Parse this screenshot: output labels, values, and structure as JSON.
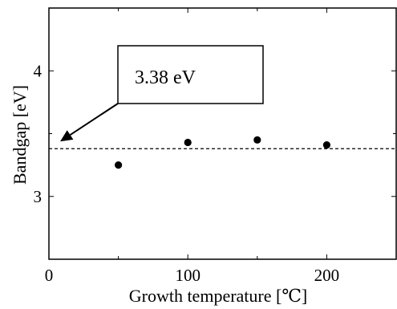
{
  "chart_data": {
    "type": "scatter",
    "title": "",
    "xlabel": "Growth temperature [℃]",
    "ylabel": "Bandgap [eV]",
    "xlim": [
      0,
      250
    ],
    "ylim": [
      2.5,
      4.5
    ],
    "xticks": [
      0,
      100,
      200
    ],
    "xtick_labels": [
      "0",
      "100",
      "200"
    ],
    "yticks": [
      3,
      4
    ],
    "ytick_labels": [
      "3",
      "4"
    ],
    "grid": false,
    "series": [
      {
        "x": [
          50,
          100,
          150,
          200
        ],
        "y": [
          3.25,
          3.43,
          3.45,
          3.41
        ]
      }
    ],
    "reference_line": {
      "y": 3.38,
      "style": "dashed"
    },
    "annotation": {
      "text": "3.38 eV",
      "x": 0,
      "y": 3.38
    }
  }
}
